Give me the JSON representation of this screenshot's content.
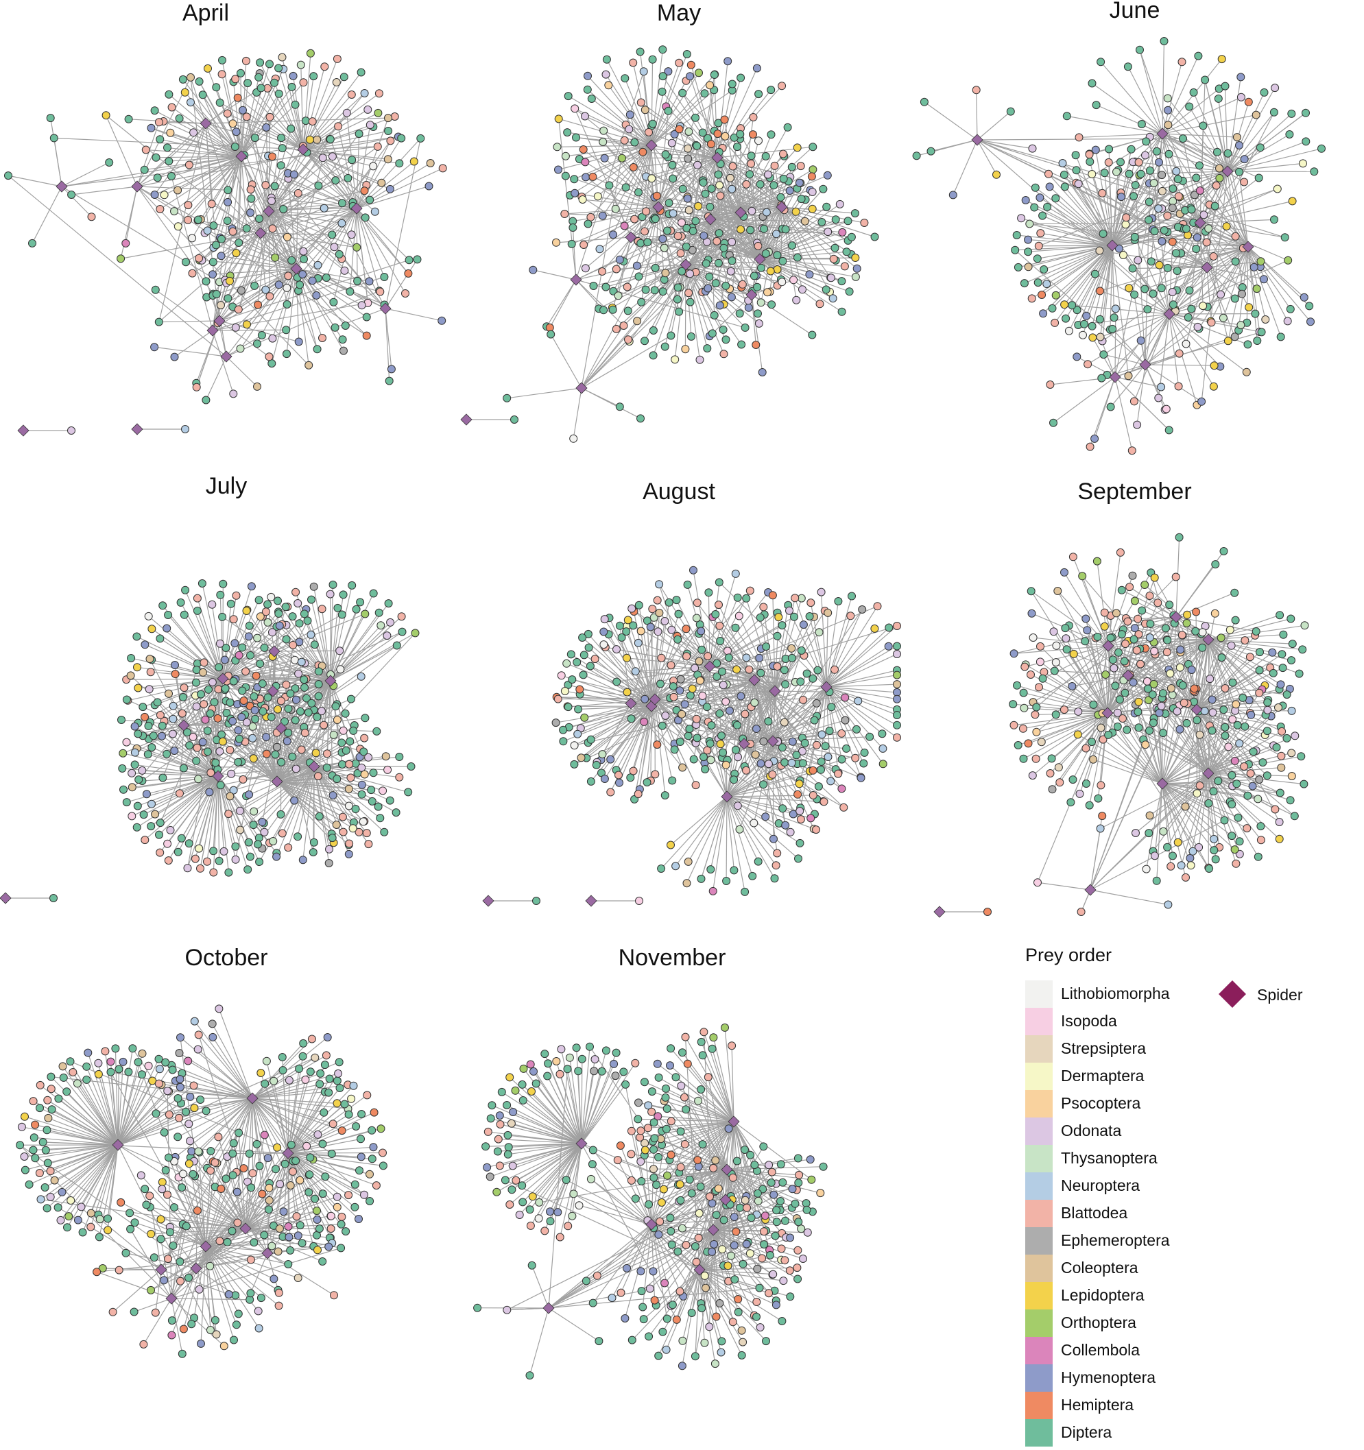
{
  "panels": [
    {
      "id": "april",
      "title": "April"
    },
    {
      "id": "may",
      "title": "May"
    },
    {
      "id": "june",
      "title": "June"
    },
    {
      "id": "july",
      "title": "July"
    },
    {
      "id": "august",
      "title": "August"
    },
    {
      "id": "september",
      "title": "September"
    },
    {
      "id": "october",
      "title": "October"
    },
    {
      "id": "november",
      "title": "November"
    }
  ],
  "legend": {
    "title": "Prey order",
    "items": [
      {
        "label": "Lithobiomorpha",
        "color": "#f2f2f0"
      },
      {
        "label": "Isopoda",
        "color": "#f7cfe3"
      },
      {
        "label": "Strepsiptera",
        "color": "#e6d6bd"
      },
      {
        "label": "Dermaptera",
        "color": "#f6f7c7"
      },
      {
        "label": "Psocoptera",
        "color": "#f9d29e"
      },
      {
        "label": "Odonata",
        "color": "#dcc7e3"
      },
      {
        "label": "Thysanoptera",
        "color": "#c8e4c6"
      },
      {
        "label": "Neuroptera",
        "color": "#b4cde4"
      },
      {
        "label": "Blattodea",
        "color": "#f2b3a7"
      },
      {
        "label": "Ephemeroptera",
        "color": "#adadad"
      },
      {
        "label": "Coleoptera",
        "color": "#dfc49c"
      },
      {
        "label": "Lepidoptera",
        "color": "#f3d24b"
      },
      {
        "label": "Orthoptera",
        "color": "#a4cd6a"
      },
      {
        "label": "Collembola",
        "color": "#db85bb"
      },
      {
        "label": "Hymenoptera",
        "color": "#8e9bc9"
      },
      {
        "label": "Hemiptera",
        "color": "#ef8a62"
      },
      {
        "label": "Diptera",
        "color": "#6fbd9c"
      }
    ],
    "spider_label": "Spider",
    "spider_color": "#8b1e5b"
  },
  "styles": {
    "edge_color": "#a0a0a0",
    "node_stroke": "#333333",
    "spider_node_color": "#9a6aa2"
  }
}
